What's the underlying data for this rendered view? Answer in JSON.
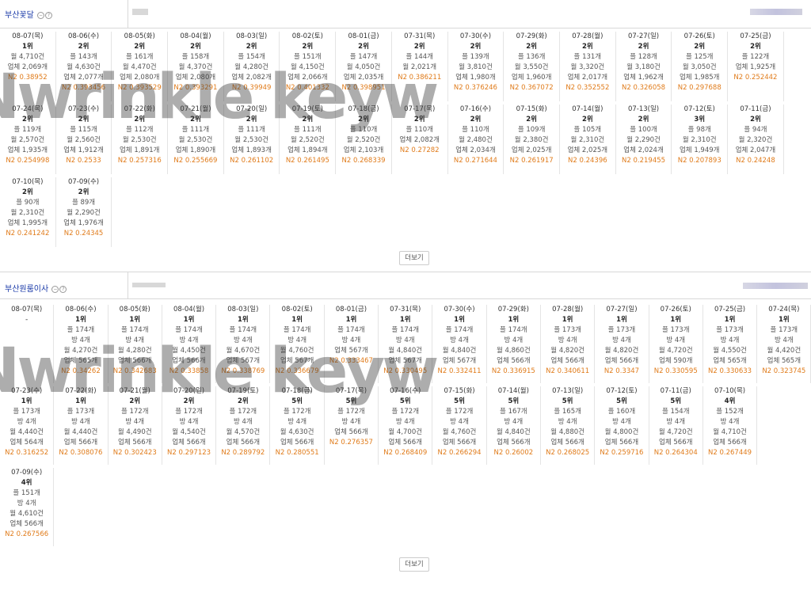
{
  "watermark": "Nwrinkle keyw",
  "panels": [
    {
      "keyword": "부산꽃달",
      "more": "더보기",
      "rows": [
        [
          {
            "d": "08-07(목)",
            "r": "1위",
            "l": [
              "월 4,710건",
              "업체 2,069개"
            ],
            "n": "N2 0.38952"
          },
          {
            "d": "08-06(수)",
            "r": "2위",
            "l": [
              "플 143개",
              "월 4,630건",
              "업체 2,077개"
            ],
            "n": "N2 0.393456"
          },
          {
            "d": "08-05(화)",
            "r": "2위",
            "l": [
              "플 161개",
              "월 4,470건",
              "업체 2,080개"
            ],
            "n": "N2 0.393529"
          },
          {
            "d": "08-04(월)",
            "r": "2위",
            "l": [
              "플 158개",
              "월 4,370건",
              "업체 2,080개"
            ],
            "n": "N2 0.393291"
          },
          {
            "d": "08-03(일)",
            "r": "2위",
            "l": [
              "플 154개",
              "월 4,280건",
              "업체 2,082개"
            ],
            "n": "N2 0.39949"
          },
          {
            "d": "08-02(토)",
            "r": "2위",
            "l": [
              "플 151개",
              "월 4,150건",
              "업체 2,066개"
            ],
            "n": "N2 0.401332"
          },
          {
            "d": "08-01(금)",
            "r": "2위",
            "l": [
              "플 147개",
              "월 4,050건",
              "업체 2,035개"
            ],
            "n": "N2 0.398951"
          },
          {
            "d": "07-31(목)",
            "r": "2위",
            "l": [
              "플 144개",
              "월 2,021개"
            ],
            "n": "N2 0.386211"
          },
          {
            "d": "07-30(수)",
            "r": "2위",
            "l": [
              "플 139개",
              "월 3,810건",
              "업체 1,980개"
            ],
            "n": "N2 0.376246"
          },
          {
            "d": "07-29(화)",
            "r": "2위",
            "l": [
              "플 136개",
              "월 3,550건",
              "업체 1,960개"
            ],
            "n": "N2 0.367072"
          },
          {
            "d": "07-28(월)",
            "r": "2위",
            "l": [
              "플 131개",
              "월 3,320건",
              "업체 2,017개"
            ],
            "n": "N2 0.352552"
          },
          {
            "d": "07-27(일)",
            "r": "2위",
            "l": [
              "플 128개",
              "월 3,180건",
              "업체 1,962개"
            ],
            "n": "N2 0.326058"
          },
          {
            "d": "07-26(토)",
            "r": "2위",
            "l": [
              "플 125개",
              "월 3,050건",
              "업체 1,985개"
            ],
            "n": "N2 0.297688"
          },
          {
            "d": "07-25(금)",
            "r": "2위",
            "l": [
              "플 122개",
              "업체 1,925개"
            ],
            "n": "N2 0.252442"
          }
        ],
        [
          {
            "d": "07-24(목)",
            "r": "2위",
            "l": [
              "플 119개",
              "월 2,570건",
              "업체 1,935개"
            ],
            "n": "N2 0.254998"
          },
          {
            "d": "07-23(수)",
            "r": "2위",
            "l": [
              "플 115개",
              "월 2,560건",
              "업체 1,912개"
            ],
            "n": "N2 0.2533"
          },
          {
            "d": "07-22(화)",
            "r": "2위",
            "l": [
              "플 112개",
              "월 2,530건",
              "업체 1,891개"
            ],
            "n": "N2 0.257316"
          },
          {
            "d": "07-21(월)",
            "r": "2위",
            "l": [
              "플 111개",
              "월 2,530건",
              "업체 1,890개"
            ],
            "n": "N2 0.255669"
          },
          {
            "d": "07-20(일)",
            "r": "2위",
            "l": [
              "플 111개",
              "월 2,530건",
              "업체 1,893개"
            ],
            "n": "N2 0.261102"
          },
          {
            "d": "07-19(토)",
            "r": "2위",
            "l": [
              "플 111개",
              "월 2,520건",
              "업체 1,894개"
            ],
            "n": "N2 0.261495"
          },
          {
            "d": "07-18(금)",
            "r": "2위",
            "l": [
              "플 110개",
              "월 2,520건",
              "업체 2,103개"
            ],
            "n": "N2 0.268339"
          },
          {
            "d": "07-17(목)",
            "r": "2위",
            "l": [
              "플 110개",
              "업체 2,082개"
            ],
            "n": "N2 0.27282"
          },
          {
            "d": "07-16(수)",
            "r": "2위",
            "l": [
              "플 110개",
              "월 2,480건",
              "업체 2,034개"
            ],
            "n": "N2 0.271644"
          },
          {
            "d": "07-15(화)",
            "r": "2위",
            "l": [
              "플 109개",
              "월 2,380건",
              "업체 2,025개"
            ],
            "n": "N2 0.261917"
          },
          {
            "d": "07-14(월)",
            "r": "2위",
            "l": [
              "플 105개",
              "월 2,310건",
              "업체 2,025개"
            ],
            "n": "N2 0.24396"
          },
          {
            "d": "07-13(일)",
            "r": "2위",
            "l": [
              "플 100개",
              "월 2,290건",
              "업체 2,024개"
            ],
            "n": "N2 0.219455"
          },
          {
            "d": "07-12(토)",
            "r": "3위",
            "l": [
              "플 98개",
              "월 2,310건",
              "업체 1,949개"
            ],
            "n": "N2 0.207893"
          },
          {
            "d": "07-11(금)",
            "r": "2위",
            "l": [
              "플 94개",
              "월 2,320건",
              "업체 2,047개"
            ],
            "n": "N2 0.24248"
          }
        ],
        [
          {
            "d": "07-10(목)",
            "r": "2위",
            "l": [
              "플 90개",
              "월 2,310건",
              "업체 1,995개"
            ],
            "n": "N2 0.241242"
          },
          {
            "d": "07-09(수)",
            "r": "2위",
            "l": [
              "플 89개",
              "월 2,290건",
              "업체 1,976개"
            ],
            "n": "N2 0.24345"
          }
        ]
      ]
    },
    {
      "keyword": "부산원룸이사",
      "more": "더보기",
      "rows": [
        [
          {
            "d": "08-07(목)",
            "dash": "-"
          },
          {
            "d": "08-06(수)",
            "r": "1위",
            "l": [
              "플 174개",
              "방 4개",
              "월 4,270건",
              "업체 565개"
            ],
            "n": "N2 0.34262"
          },
          {
            "d": "08-05(화)",
            "r": "1위",
            "l": [
              "플 174개",
              "방 4개",
              "월 4,280건",
              "업체 566개"
            ],
            "n": "N2 0.342683"
          },
          {
            "d": "08-04(월)",
            "r": "1위",
            "l": [
              "플 174개",
              "방 4개",
              "월 4,450건",
              "업체 566개"
            ],
            "n": "N2 0.33858"
          },
          {
            "d": "08-03(일)",
            "r": "1위",
            "l": [
              "플 174개",
              "방 4개",
              "월 4,670건",
              "업체 567개"
            ],
            "n": "N2 0.338769"
          },
          {
            "d": "08-02(토)",
            "r": "1위",
            "l": [
              "플 174개",
              "방 4개",
              "월 4,760건",
              "업체 567개"
            ],
            "n": "N2 0.336679"
          },
          {
            "d": "08-01(금)",
            "r": "1위",
            "l": [
              "플 174개",
              "방 4개",
              "업체 567개"
            ],
            "n": "N2 0.333467"
          },
          {
            "d": "07-31(목)",
            "r": "1위",
            "l": [
              "플 174개",
              "방 4개",
              "월 4,840건",
              "업체 567개"
            ],
            "n": "N2 0.330495"
          },
          {
            "d": "07-30(수)",
            "r": "1위",
            "l": [
              "플 174개",
              "방 4개",
              "월 4,840건",
              "업체 567개"
            ],
            "n": "N2 0.332411"
          },
          {
            "d": "07-29(화)",
            "r": "1위",
            "l": [
              "플 174개",
              "방 4개",
              "월 4,860건",
              "업체 566개"
            ],
            "n": "N2 0.336915"
          },
          {
            "d": "07-28(월)",
            "r": "1위",
            "l": [
              "플 173개",
              "방 4개",
              "월 4,820건",
              "업체 566개"
            ],
            "n": "N2 0.340611"
          },
          {
            "d": "07-27(일)",
            "r": "1위",
            "l": [
              "플 173개",
              "방 4개",
              "월 4,820건",
              "업체 566개"
            ],
            "n": "N2 0.3347"
          },
          {
            "d": "07-26(토)",
            "r": "1위",
            "l": [
              "플 173개",
              "방 4개",
              "월 4,720건",
              "업체 590개"
            ],
            "n": "N2 0.330595"
          },
          {
            "d": "07-25(금)",
            "r": "1위",
            "l": [
              "플 173개",
              "방 4개",
              "월 4,550건",
              "업체 565개"
            ],
            "n": "N2 0.330633"
          },
          {
            "d": "07-24(목)",
            "r": "1위",
            "l": [
              "플 173개",
              "방 4개",
              "월 4,420건",
              "업체 565개"
            ],
            "n": "N2 0.323745"
          }
        ],
        [
          {
            "d": "07-23(수)",
            "r": "1위",
            "l": [
              "플 173개",
              "방 4개",
              "월 4,440건",
              "업체 564개"
            ],
            "n": "N2 0.316252"
          },
          {
            "d": "07-22(화)",
            "r": "1위",
            "l": [
              "플 173개",
              "방 4개",
              "월 4,440건",
              "업체 566개"
            ],
            "n": "N2 0.308076"
          },
          {
            "d": "07-21(월)",
            "r": "2위",
            "l": [
              "플 172개",
              "방 4개",
              "월 4,490건",
              "업체 566개"
            ],
            "n": "N2 0.302423"
          },
          {
            "d": "07-20(일)",
            "r": "2위",
            "l": [
              "플 172개",
              "방 4개",
              "월 4,540건",
              "업체 566개"
            ],
            "n": "N2 0.297123"
          },
          {
            "d": "07-19(토)",
            "r": "2위",
            "l": [
              "플 172개",
              "방 4개",
              "월 4,570건",
              "업체 566개"
            ],
            "n": "N2 0.289792"
          },
          {
            "d": "07-18(금)",
            "r": "5위",
            "l": [
              "플 172개",
              "방 4개",
              "월 4,630건",
              "업체 566개"
            ],
            "n": "N2 0.280551"
          },
          {
            "d": "07-17(목)",
            "r": "5위",
            "l": [
              "플 172개",
              "방 4개",
              "업체 566개"
            ],
            "n": "N2 0.276357"
          },
          {
            "d": "07-16(수)",
            "r": "5위",
            "l": [
              "플 172개",
              "방 4개",
              "월 4,700건",
              "업체 566개"
            ],
            "n": "N2 0.268409"
          },
          {
            "d": "07-15(화)",
            "r": "5위",
            "l": [
              "플 172개",
              "방 4개",
              "월 4,760건",
              "업체 566개"
            ],
            "n": "N2 0.266294"
          },
          {
            "d": "07-14(월)",
            "r": "5위",
            "l": [
              "플 167개",
              "방 4개",
              "월 4,840건",
              "업체 566개"
            ],
            "n": "N2 0.26002"
          },
          {
            "d": "07-13(일)",
            "r": "5위",
            "l": [
              "플 165개",
              "방 4개",
              "월 4,880건",
              "업체 566개"
            ],
            "n": "N2 0.268025"
          },
          {
            "d": "07-12(토)",
            "r": "5위",
            "l": [
              "플 160개",
              "방 4개",
              "월 4,800건",
              "업체 566개"
            ],
            "n": "N2 0.259716"
          },
          {
            "d": "07-11(금)",
            "r": "5위",
            "l": [
              "플 154개",
              "방 4개",
              "월 4,720건",
              "업체 566개"
            ],
            "n": "N2 0.264304"
          },
          {
            "d": "07-10(목)",
            "r": "4위",
            "l": [
              "플 152개",
              "방 4개",
              "월 4,710건",
              "업체 566개"
            ],
            "n": "N2 0.267449"
          }
        ],
        [
          {
            "d": "07-09(수)",
            "r": "4위",
            "l": [
              "플 151개",
              "방 4개",
              "월 4,610건",
              "업체 566개"
            ],
            "n": "N2 0.267566"
          }
        ]
      ]
    }
  ]
}
